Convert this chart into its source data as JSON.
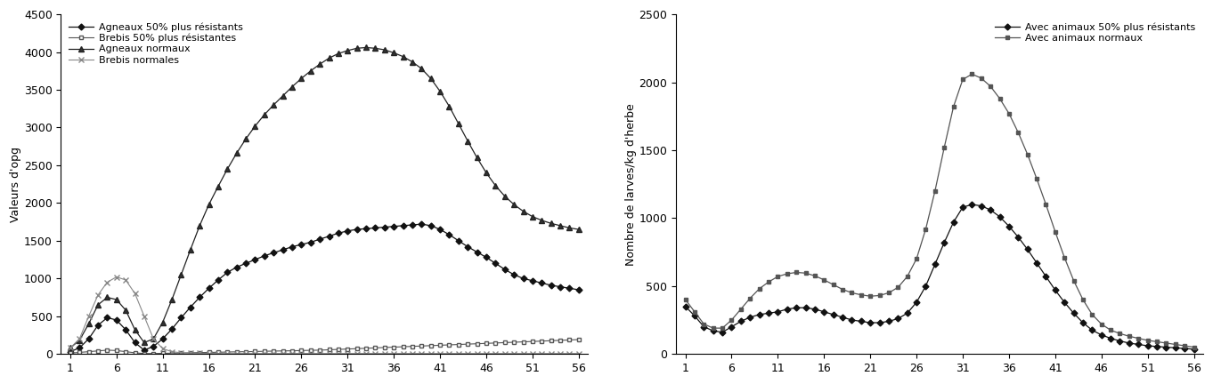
{
  "left_ylabel": "Valeurs d'opg",
  "right_ylabel": "Nombre de larves/kg d'herbe",
  "x_ticks": [
    1,
    6,
    11,
    16,
    21,
    26,
    31,
    36,
    41,
    46,
    51,
    56
  ],
  "left_ylim": [
    0,
    4500
  ],
  "right_ylim": [
    0,
    2500
  ],
  "left_yticks": [
    0,
    500,
    1000,
    1500,
    2000,
    2500,
    3000,
    3500,
    4000,
    4500
  ],
  "right_yticks": [
    0,
    500,
    1000,
    1500,
    2000,
    2500
  ],
  "left_series": {
    "agneaux_resistants": {
      "label": "Agneaux 50% plus résistants",
      "marker": "D",
      "values": [
        30,
        80,
        200,
        380,
        480,
        450,
        320,
        150,
        50,
        100,
        200,
        330,
        480,
        620,
        750,
        870,
        980,
        1080,
        1150,
        1200,
        1250,
        1300,
        1340,
        1380,
        1420,
        1450,
        1480,
        1520,
        1560,
        1600,
        1630,
        1650,
        1660,
        1670,
        1680,
        1690,
        1700,
        1710,
        1720,
        1700,
        1650,
        1580,
        1500,
        1420,
        1350,
        1280,
        1200,
        1120,
        1050,
        1000,
        970,
        940,
        910,
        890,
        870,
        850
      ]
    },
    "brebis_resistantes": {
      "label": "Brebis 50% plus résistantes",
      "marker": "s",
      "values": [
        10,
        20,
        30,
        40,
        50,
        45,
        30,
        15,
        5,
        5,
        8,
        10,
        12,
        15,
        18,
        20,
        22,
        25,
        28,
        30,
        32,
        35,
        38,
        40,
        42,
        45,
        48,
        50,
        55,
        60,
        65,
        70,
        75,
        80,
        85,
        90,
        95,
        100,
        105,
        110,
        115,
        120,
        125,
        130,
        135,
        140,
        145,
        150,
        155,
        160,
        165,
        170,
        175,
        180,
        185,
        190
      ]
    },
    "agneaux_normaux": {
      "label": "Agneaux normaux",
      "marker": "^",
      "values": [
        80,
        180,
        400,
        650,
        750,
        720,
        580,
        320,
        150,
        200,
        420,
        720,
        1050,
        1380,
        1700,
        1980,
        2220,
        2450,
        2660,
        2850,
        3020,
        3170,
        3300,
        3420,
        3540,
        3650,
        3750,
        3840,
        3920,
        3980,
        4020,
        4050,
        4060,
        4050,
        4030,
        3990,
        3940,
        3870,
        3780,
        3650,
        3480,
        3280,
        3050,
        2820,
        2600,
        2400,
        2230,
        2090,
        1980,
        1890,
        1820,
        1770,
        1730,
        1700,
        1670,
        1650
      ]
    },
    "brebis_normales": {
      "label": "Brebis normales",
      "marker": "x",
      "values": [
        80,
        200,
        500,
        780,
        950,
        1020,
        980,
        800,
        500,
        200,
        70,
        30,
        15,
        10,
        8,
        7,
        6,
        5,
        5,
        5,
        5,
        5,
        5,
        5,
        5,
        5,
        5,
        5,
        5,
        5,
        5,
        5,
        5,
        5,
        5,
        5,
        5,
        5,
        5,
        5,
        5,
        5,
        5,
        5,
        5,
        5,
        5,
        5,
        5,
        5,
        5,
        5,
        5,
        5,
        5,
        5
      ]
    }
  },
  "right_series": {
    "resistants": {
      "label": "Avec animaux 50% plus résistants",
      "marker": "D",
      "values": [
        350,
        280,
        200,
        170,
        160,
        200,
        240,
        270,
        290,
        300,
        310,
        330,
        340,
        340,
        330,
        310,
        290,
        270,
        250,
        240,
        230,
        230,
        240,
        260,
        300,
        380,
        500,
        660,
        820,
        970,
        1080,
        1100,
        1090,
        1060,
        1010,
        940,
        860,
        770,
        670,
        570,
        470,
        380,
        300,
        230,
        175,
        140,
        115,
        95,
        80,
        70,
        60,
        55,
        50,
        45,
        40,
        35
      ]
    },
    "normaux": {
      "label": "Avec animaux normaux",
      "marker": "s",
      "values": [
        400,
        310,
        220,
        190,
        190,
        250,
        330,
        410,
        480,
        530,
        570,
        590,
        600,
        595,
        575,
        545,
        510,
        475,
        450,
        435,
        425,
        430,
        450,
        490,
        570,
        700,
        920,
        1200,
        1520,
        1820,
        2020,
        2060,
        2030,
        1970,
        1880,
        1770,
        1630,
        1470,
        1290,
        1100,
        900,
        710,
        540,
        400,
        290,
        220,
        175,
        150,
        130,
        115,
        100,
        90,
        80,
        70,
        60,
        50
      ]
    }
  },
  "bg_color": "#ffffff",
  "fontsize": 9,
  "marker_size": 4
}
